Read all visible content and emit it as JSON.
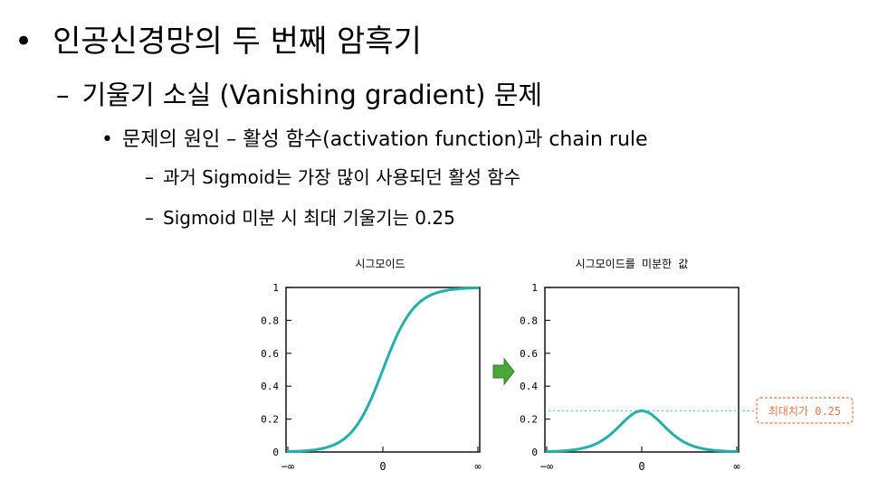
{
  "slide": {
    "bullet_main": "•",
    "bullet_dash": "–",
    "bullet_small": "•",
    "title": "인공신경망의 두 번째 암흑기",
    "subtitle": "기울기 소실 (Vanishing gradient) 문제",
    "point": "문제의 원인 – 활성 함수(activation function)과 chain rule",
    "sub_points": [
      "과거 Sigmoid는 가장 많이 사용되던 활성 함수",
      "Sigmoid 미분 시 최대 기울기는 0.25"
    ]
  },
  "chart_data": [
    {
      "type": "line",
      "title": "시그모이드",
      "x_ticks": [
        "−∞",
        "0",
        "∞"
      ],
      "y_ticks": [
        "0",
        "0.2",
        "0.4",
        "0.6",
        "0.8",
        "1"
      ],
      "ylim": [
        0,
        1
      ],
      "series": [
        {
          "x": [
            -6,
            -5,
            -4,
            -3,
            -2,
            -1,
            0,
            1,
            2,
            3,
            4,
            5,
            6
          ],
          "y": [
            0.0025,
            0.0067,
            0.018,
            0.047,
            0.119,
            0.269,
            0.5,
            0.731,
            0.881,
            0.953,
            0.982,
            0.993,
            0.9975
          ],
          "color": "#21b0aa"
        }
      ]
    },
    {
      "type": "line",
      "title": "시그모이드를 미분한 값",
      "x_ticks": [
        "−∞",
        "0",
        "∞"
      ],
      "y_ticks": [
        "0",
        "0.2",
        "0.4",
        "0.6",
        "0.8",
        "1"
      ],
      "ylim": [
        0,
        1
      ],
      "series": [
        {
          "x": [
            -6,
            -5,
            -4,
            -3,
            -2,
            -1,
            0,
            1,
            2,
            3,
            4,
            5,
            6
          ],
          "y": [
            0.0025,
            0.0066,
            0.0177,
            0.0452,
            0.105,
            0.197,
            0.25,
            0.197,
            0.105,
            0.0452,
            0.0177,
            0.0066,
            0.0025
          ],
          "color": "#21b0aa"
        }
      ],
      "reference_line": {
        "y": 0.25,
        "color": "#5cc8c8"
      },
      "annotation": {
        "text": "최대치가 0.25",
        "color": "#e07a4a"
      }
    }
  ],
  "arrow": {
    "color": "#4aa83a"
  }
}
